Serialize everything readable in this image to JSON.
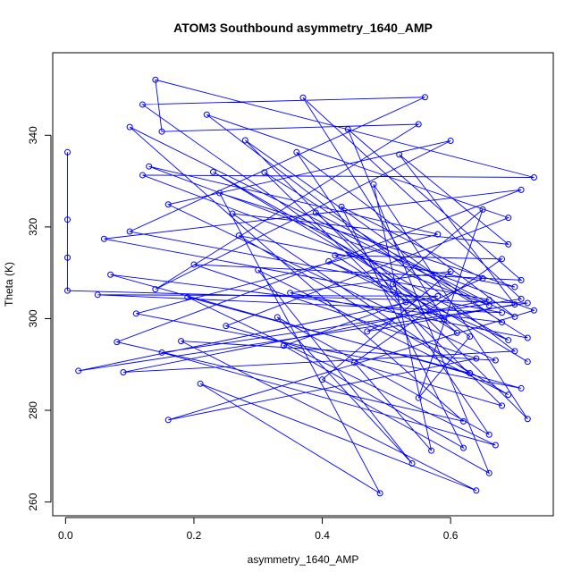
{
  "chart_data": {
    "type": "line",
    "title": "ATOM3 Southbound asymmetry_1640_AMP",
    "xlabel": "asymmetry_1640_AMP",
    "ylabel": "Theta (K)",
    "xlim": [
      -0.02,
      0.76
    ],
    "ylim": [
      257,
      358
    ],
    "x_ticks": [
      0.0,
      0.2,
      0.4,
      0.6
    ],
    "x_tick_labels": [
      "0.0",
      "0.2",
      "0.4",
      "0.6"
    ],
    "y_ticks": [
      260,
      280,
      300,
      320,
      340
    ],
    "y_tick_labels": [
      "260",
      "280",
      "300",
      "320",
      "340"
    ],
    "grid": false,
    "series": [
      {
        "color": "#0000ff",
        "marker": "open-circle",
        "points": [
          [
            0.003,
            336.3
          ],
          [
            0.003,
            321.6
          ],
          [
            0.003,
            313.3
          ],
          [
            0.003,
            306.1
          ],
          [
            0.72,
            303.4
          ],
          [
            0.02,
            288.6
          ],
          [
            0.58,
            304.9
          ],
          [
            0.05,
            305.2
          ],
          [
            0.68,
            301.3
          ],
          [
            0.06,
            317.4
          ],
          [
            0.71,
            328.1
          ],
          [
            0.08,
            294.9
          ],
          [
            0.62,
            277.6
          ],
          [
            0.1,
            341.8
          ],
          [
            0.66,
            302.9
          ],
          [
            0.12,
            331.3
          ],
          [
            0.73,
            330.8
          ],
          [
            0.14,
            352.1
          ],
          [
            0.15,
            340.8
          ],
          [
            0.55,
            342.4
          ],
          [
            0.14,
            306.4
          ],
          [
            0.6,
            338.8
          ],
          [
            0.16,
            324.9
          ],
          [
            0.67,
            290.9
          ],
          [
            0.18,
            295.1
          ],
          [
            0.64,
            262.5
          ],
          [
            0.21,
            285.8
          ],
          [
            0.49,
            261.9
          ],
          [
            0.24,
            327.4
          ],
          [
            0.7,
            306.9
          ],
          [
            0.27,
            318.1
          ],
          [
            0.69,
            283.4
          ],
          [
            0.3,
            310.6
          ],
          [
            0.54,
            268.4
          ],
          [
            0.33,
            300.3
          ],
          [
            0.66,
            274.7
          ],
          [
            0.36,
            336.3
          ],
          [
            0.7,
            300.4
          ],
          [
            0.39,
            323.1
          ],
          [
            0.61,
            296.9
          ],
          [
            0.42,
            313.8
          ],
          [
            0.68,
            313.0
          ],
          [
            0.45,
            290.4
          ],
          [
            0.57,
            271.2
          ],
          [
            0.48,
            329.3
          ],
          [
            0.72,
            278.1
          ],
          [
            0.51,
            307.5
          ],
          [
            0.65,
            323.8
          ],
          [
            0.55,
            282.7
          ],
          [
            0.63,
            296.1
          ],
          [
            0.12,
            346.7
          ],
          [
            0.56,
            348.3
          ],
          [
            0.1,
            319.0
          ],
          [
            0.66,
            304.1
          ],
          [
            0.09,
            288.3
          ],
          [
            0.7,
            292.9
          ],
          [
            0.22,
            344.5
          ],
          [
            0.69,
            322.0
          ],
          [
            0.25,
            298.4
          ],
          [
            0.68,
            281.0
          ],
          [
            0.31,
            331.9
          ],
          [
            0.72,
            295.8
          ],
          [
            0.35,
            305.6
          ],
          [
            0.6,
            310.3
          ],
          [
            0.4,
            286.7
          ],
          [
            0.66,
            266.3
          ],
          [
            0.44,
            341.3
          ],
          [
            0.71,
            308.4
          ],
          [
            0.2,
            311.8
          ],
          [
            0.64,
            291.3
          ],
          [
            0.16,
            277.9
          ],
          [
            0.73,
            301.8
          ],
          [
            0.13,
            333.2
          ],
          [
            0.58,
            318.4
          ],
          [
            0.11,
            301.1
          ],
          [
            0.71,
            284.8
          ],
          [
            0.07,
            309.6
          ],
          [
            0.68,
            299.2
          ],
          [
            0.28,
            338.9
          ],
          [
            0.53,
            303.6
          ],
          [
            0.34,
            294.1
          ],
          [
            0.62,
            271.8
          ],
          [
            0.43,
            324.4
          ],
          [
            0.65,
            308.8
          ],
          [
            0.47,
            297.2
          ],
          [
            0.7,
            303.1
          ],
          [
            0.52,
            335.8
          ],
          [
            0.69,
            316.2
          ],
          [
            0.26,
            322.9
          ],
          [
            0.63,
            288.1
          ],
          [
            0.19,
            304.7
          ],
          [
            0.67,
            272.4
          ],
          [
            0.15,
            292.6
          ],
          [
            0.71,
            304.3
          ],
          [
            0.37,
            348.2
          ],
          [
            0.59,
            299.8
          ],
          [
            0.41,
            312.5
          ],
          [
            0.69,
            295.3
          ],
          [
            0.23,
            332.0
          ],
          [
            0.72,
            290.6
          ]
        ]
      }
    ]
  }
}
